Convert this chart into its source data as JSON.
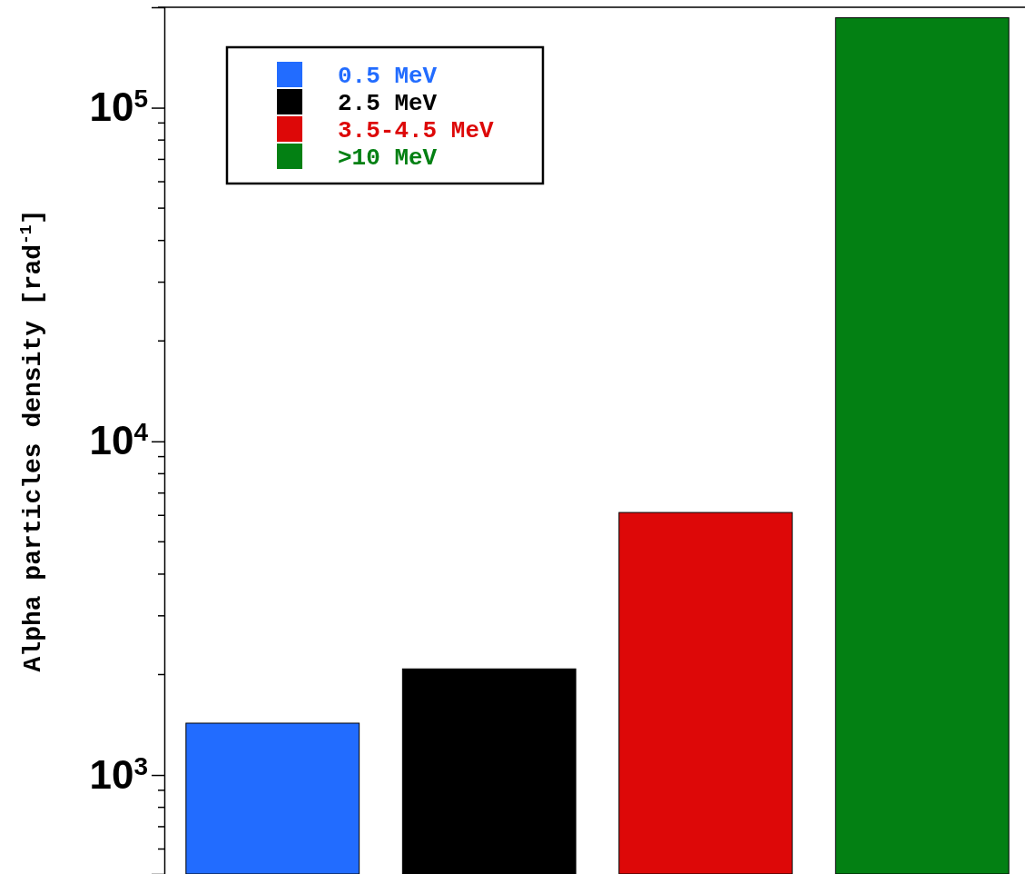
{
  "chart_data": {
    "type": "bar",
    "stacked": true,
    "log": true,
    "ylabel": "Alpha particles density [rad$^{-1}$]",
    "categories": [
      null,
      null,
      null,
      null
    ],
    "series": [
      {
        "name": "0.5 MeV",
        "color": "#226cff",
        "values": [
          1430,
          null,
          null,
          null
        ]
      },
      {
        "name": "2.5 MeV",
        "color": "#000000",
        "values": [
          null,
          2080,
          null,
          null
        ]
      },
      {
        "name": "3.5-4.5 MeV",
        "color": "#dd0808",
        "values": [
          null,
          null,
          6120,
          null
        ]
      },
      {
        "name": ">10 MeV",
        "color": "#038013",
        "values": [
          null,
          null,
          null,
          186000
        ]
      }
    ],
    "ylim": [
      505,
      200000
    ],
    "yticks": [
      {
        "value": 1000,
        "label": "10$^{3}$"
      },
      {
        "value": 10000,
        "label": "10$^{4}$"
      },
      {
        "value": 100000,
        "label": "10$^{5}$"
      }
    ],
    "legend": "top left",
    "tick_labels": "y"
  }
}
